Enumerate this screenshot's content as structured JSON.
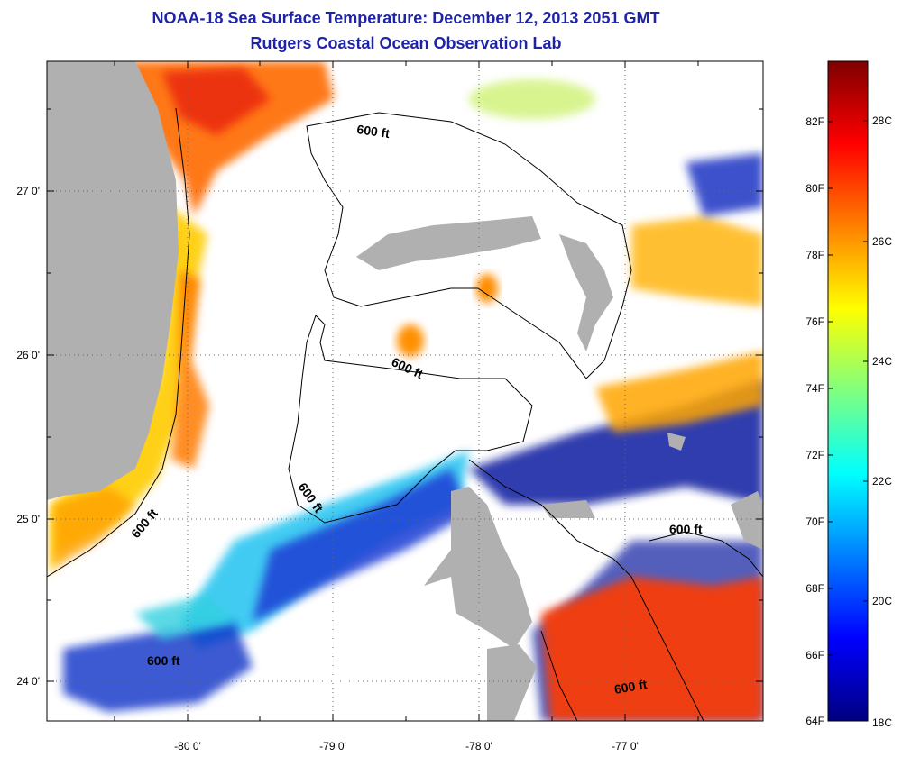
{
  "title": {
    "line1": "NOAA-18 Sea Surface Temperature:  December 12, 2013 2051 GMT",
    "line2": "Rutgers Coastal Ocean Observation Lab"
  },
  "map": {
    "lon_ticks": [
      "-80 0'",
      "-79 0'",
      "-78 0'",
      "-77 0'"
    ],
    "lat_ticks": [
      "27 0'",
      "26 0'",
      "25 0'",
      "24 0'"
    ],
    "contour_label": "600 ft",
    "land_color": "#b0b0b0",
    "missing_color": "#ffffff"
  },
  "colorbar": {
    "fahrenheit_labels": [
      "82F",
      "80F",
      "78F",
      "76F",
      "74F",
      "72F",
      "70F",
      "68F",
      "66F",
      "64F"
    ],
    "celsius_labels": [
      "28C",
      "26C",
      "24C",
      "22C",
      "20C",
      "18C"
    ],
    "range_c": [
      18,
      29.5
    ],
    "colormap": "jet"
  }
}
